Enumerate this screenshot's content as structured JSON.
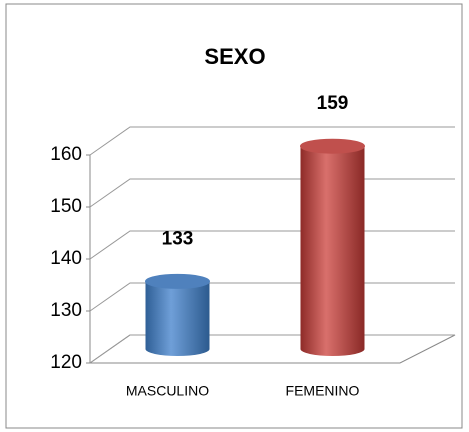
{
  "chart_data": {
    "type": "bar3d",
    "title": "SEXO",
    "categories": [
      "MASCULINO",
      "FEMENINO"
    ],
    "series": [
      {
        "name": "SEXO",
        "colors": [
          "#4f81bd",
          "#c0504d"
        ],
        "values": [
          133,
          159
        ]
      }
    ],
    "ylim": [
      120,
      160
    ],
    "yticks": [
      120,
      130,
      140,
      150,
      160
    ],
    "grid": true
  }
}
